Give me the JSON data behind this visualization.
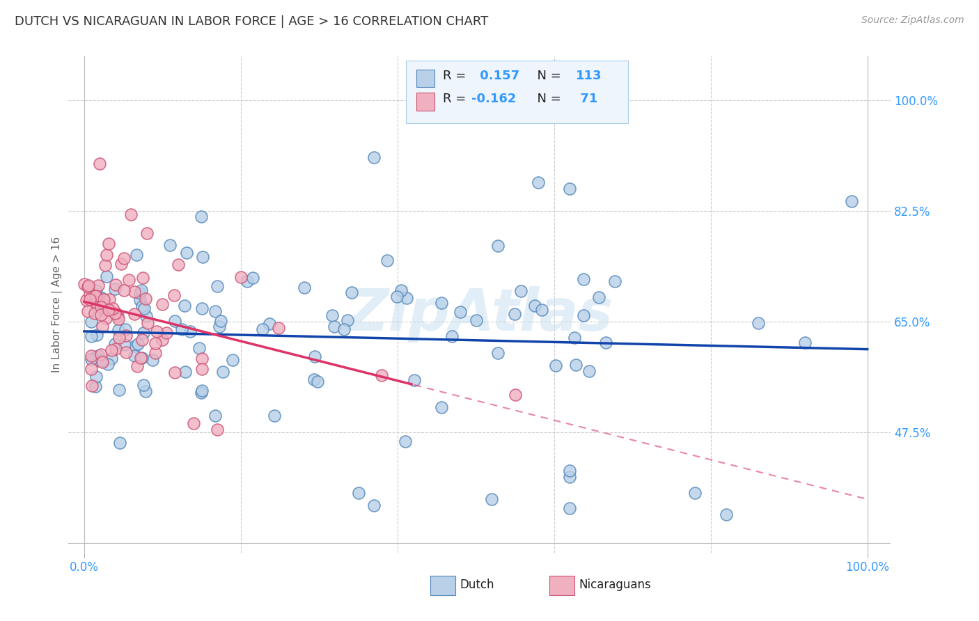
{
  "title": "DUTCH VS NICARAGUAN IN LABOR FORCE | AGE > 16 CORRELATION CHART",
  "source_text": "Source: ZipAtlas.com",
  "ylabel": "In Labor Force | Age > 16",
  "watermark": "ZipAtlas",
  "y_tick_labels_right": [
    "100.0%",
    "82.5%",
    "65.0%",
    "47.5%"
  ],
  "y_tick_positions_right": [
    1.0,
    0.825,
    0.65,
    0.475
  ],
  "dutch_color": "#b8d0e8",
  "dutch_edge_color": "#5588bb",
  "nicaraguan_color": "#f0b0c0",
  "nicaraguan_edge_color": "#cc5577",
  "trend_dutch_color": "#1144aa",
  "trend_nicaraguan_color": "#dd3366",
  "legend_r_dutch": "0.157",
  "legend_n_dutch": "113",
  "legend_r_nicaraguan": "-0.162",
  "legend_n_nicaraguan": "71",
  "background_color": "#ffffff",
  "grid_color": "#dddddd",
  "title_color": "#333333",
  "axis_label_color": "#666666",
  "tick_color": "#3399ff",
  "legend_box_color": "#eef5fc",
  "legend_border_color": "#aaccee",
  "text_color_blue": "#3399ff",
  "text_color_dark": "#222222"
}
